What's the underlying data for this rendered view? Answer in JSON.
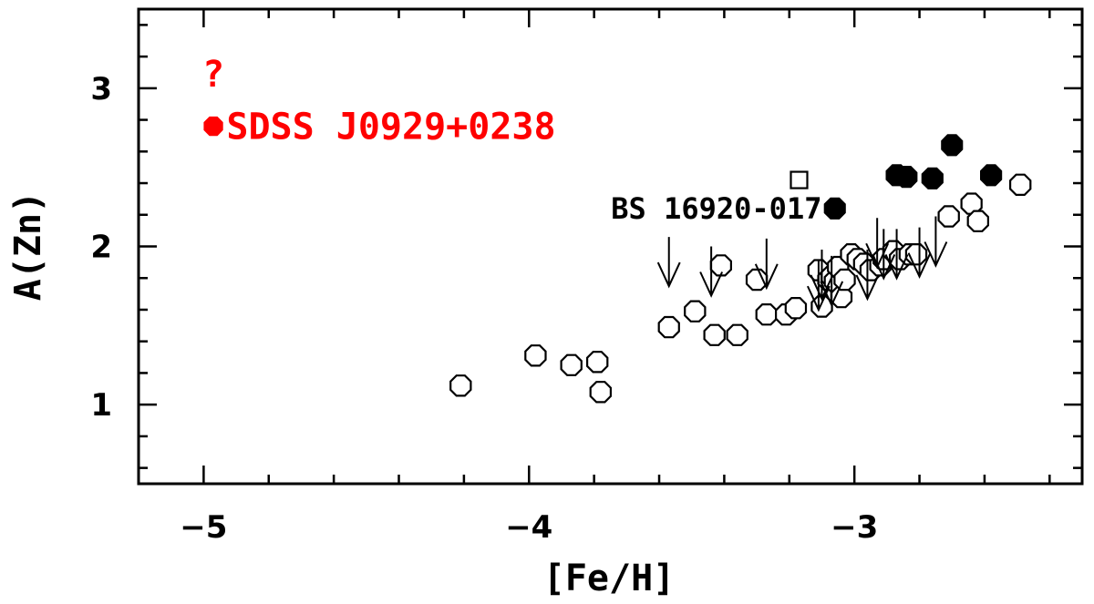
{
  "chart_data": {
    "type": "scatter",
    "xlabel": "[Fe/H]",
    "ylabel": "A(Zn)",
    "xlim": [
      -5.2,
      -2.3
    ],
    "ylim": [
      0.5,
      3.5
    ],
    "x_ticks": [
      {
        "value": -5,
        "label": "−5"
      },
      {
        "value": -4,
        "label": "−4"
      },
      {
        "value": -3,
        "label": "−3"
      }
    ],
    "y_ticks": [
      {
        "value": 1,
        "label": "1"
      },
      {
        "value": 2,
        "label": "2"
      },
      {
        "value": 3,
        "label": "3"
      }
    ],
    "x_minor_step": 0.2,
    "y_minor_step": 0.2,
    "series": [
      {
        "marker": "open-octagon",
        "points": [
          [
            -4.21,
            1.12
          ],
          [
            -3.98,
            1.31
          ],
          [
            -3.87,
            1.25
          ],
          [
            -3.79,
            1.27
          ],
          [
            -3.78,
            1.08
          ],
          [
            -3.57,
            1.49
          ],
          [
            -3.49,
            1.59
          ],
          [
            -3.43,
            1.44
          ],
          [
            -3.41,
            1.88
          ],
          [
            -3.36,
            1.44
          ],
          [
            -3.3,
            1.79
          ],
          [
            -3.27,
            1.57
          ],
          [
            -3.21,
            1.57
          ],
          [
            -3.18,
            1.61
          ],
          [
            -3.11,
            1.85
          ],
          [
            -3.1,
            1.62
          ],
          [
            -3.08,
            1.79
          ],
          [
            -3.07,
            1.81
          ],
          [
            -3.06,
            1.78
          ],
          [
            -3.05,
            1.87
          ],
          [
            -3.04,
            1.68
          ],
          [
            -3.03,
            1.79
          ],
          [
            -3.01,
            1.95
          ],
          [
            -2.99,
            1.92
          ],
          [
            -2.97,
            1.89
          ],
          [
            -2.95,
            1.85
          ],
          [
            -2.92,
            1.88
          ],
          [
            -2.91,
            1.92
          ],
          [
            -2.88,
            1.97
          ],
          [
            -2.86,
            1.92
          ],
          [
            -2.83,
            1.95
          ],
          [
            -2.81,
            1.95
          ],
          [
            -2.71,
            2.19
          ],
          [
            -2.64,
            2.27
          ],
          [
            -2.62,
            2.16
          ],
          [
            -2.49,
            2.39
          ]
        ]
      },
      {
        "marker": "filled-octagon",
        "points": [
          [
            -3.06,
            2.24
          ],
          [
            -2.87,
            2.45
          ],
          [
            -2.84,
            2.44
          ],
          [
            -2.76,
            2.43
          ],
          [
            -2.7,
            2.64
          ],
          [
            -2.58,
            2.45
          ]
        ]
      },
      {
        "marker": "open-square",
        "points": [
          [
            -3.17,
            2.42
          ]
        ]
      },
      {
        "marker": "upper-limit-arrow",
        "points": [
          [
            -3.57,
            2.06
          ],
          [
            -3.44,
            2.0
          ],
          [
            -3.27,
            2.05
          ],
          [
            -3.11,
            1.91
          ],
          [
            -3.1,
            1.98
          ],
          [
            -3.07,
            1.94
          ],
          [
            -2.96,
            1.98
          ],
          [
            -2.93,
            2.18
          ],
          [
            -2.91,
            2.11
          ],
          [
            -2.87,
            2.11
          ],
          [
            -2.8,
            2.12
          ],
          [
            -2.75,
            2.19
          ]
        ]
      },
      {
        "marker": "filled-circle-red",
        "points": [
          [
            -4.97,
            2.76
          ]
        ]
      }
    ],
    "annotations": [
      {
        "text": "BS 16920-017",
        "x": -3.1,
        "y": 2.24
      },
      {
        "text": "SDSS J0929+0238",
        "x": -4.93,
        "y": 2.76
      },
      {
        "text": "?",
        "x": -4.97,
        "y": 3.01
      }
    ],
    "colors": {
      "highlight": "#ff0000",
      "ink": "#000000"
    },
    "grid": false,
    "legend": "none"
  }
}
